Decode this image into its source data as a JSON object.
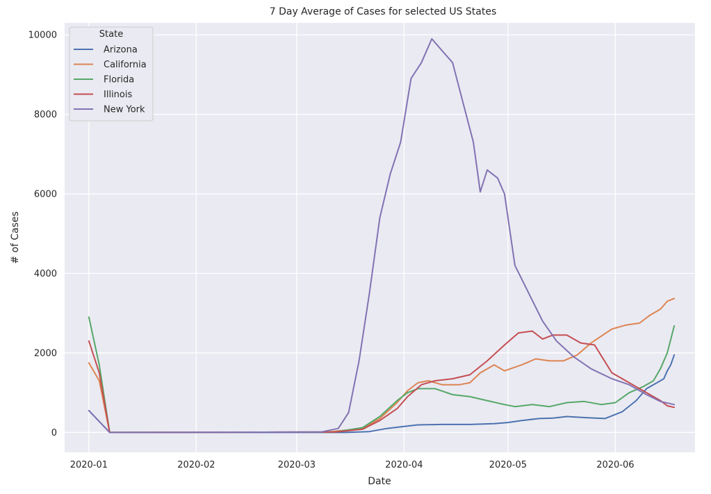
{
  "chart_data": {
    "type": "line",
    "title": "7 Day Average of Cases for selected US States",
    "xlabel": "Date",
    "ylabel": "# of Cases",
    "xlim": [
      "2019-12-25",
      "2020-06-24"
    ],
    "ylim": [
      -500,
      10300
    ],
    "yticks": [
      0,
      2000,
      4000,
      6000,
      8000,
      10000
    ],
    "xticks": [
      {
        "date": "2020-01-01",
        "label": "2020-01"
      },
      {
        "date": "2020-02-01",
        "label": "2020-02"
      },
      {
        "date": "2020-03-01",
        "label": "2020-03"
      },
      {
        "date": "2020-04-01",
        "label": "2020-04"
      },
      {
        "date": "2020-05-01",
        "label": "2020-05"
      },
      {
        "date": "2020-06-01",
        "label": "2020-06"
      }
    ],
    "grid": true,
    "background": "#eaeaf2",
    "legend": {
      "title": "State",
      "placement": "top-left"
    },
    "series": [
      {
        "name": "Arizona",
        "color": "#4c72b0",
        "points": [
          [
            "2020-01-01",
            550
          ],
          [
            "2020-01-07",
            0
          ],
          [
            "2020-03-15",
            0
          ],
          [
            "2020-03-22",
            20
          ],
          [
            "2020-03-27",
            100
          ],
          [
            "2020-04-01",
            150
          ],
          [
            "2020-04-05",
            190
          ],
          [
            "2020-04-12",
            200
          ],
          [
            "2020-04-20",
            200
          ],
          [
            "2020-04-27",
            220
          ],
          [
            "2020-05-01",
            250
          ],
          [
            "2020-05-05",
            300
          ],
          [
            "2020-05-10",
            350
          ],
          [
            "2020-05-14",
            360
          ],
          [
            "2020-05-18",
            400
          ],
          [
            "2020-05-24",
            370
          ],
          [
            "2020-05-29",
            350
          ],
          [
            "2020-06-03",
            520
          ],
          [
            "2020-06-07",
            800
          ],
          [
            "2020-06-10",
            1100
          ],
          [
            "2020-06-13",
            1250
          ],
          [
            "2020-06-15",
            1350
          ],
          [
            "2020-06-16",
            1550
          ],
          [
            "2020-06-17",
            1700
          ],
          [
            "2020-06-18",
            1950
          ]
        ]
      },
      {
        "name": "California",
        "color": "#dd8452",
        "points": [
          [
            "2020-01-01",
            1750
          ],
          [
            "2020-01-04",
            1300
          ],
          [
            "2020-01-07",
            0
          ],
          [
            "2020-03-10",
            10
          ],
          [
            "2020-03-20",
            100
          ],
          [
            "2020-03-25",
            350
          ],
          [
            "2020-03-30",
            750
          ],
          [
            "2020-04-02",
            1050
          ],
          [
            "2020-04-05",
            1250
          ],
          [
            "2020-04-08",
            1300
          ],
          [
            "2020-04-12",
            1200
          ],
          [
            "2020-04-17",
            1200
          ],
          [
            "2020-04-20",
            1250
          ],
          [
            "2020-04-23",
            1500
          ],
          [
            "2020-04-27",
            1700
          ],
          [
            "2020-04-30",
            1550
          ],
          [
            "2020-05-05",
            1700
          ],
          [
            "2020-05-09",
            1850
          ],
          [
            "2020-05-13",
            1800
          ],
          [
            "2020-05-17",
            1800
          ],
          [
            "2020-05-21",
            1950
          ],
          [
            "2020-05-25",
            2250
          ],
          [
            "2020-05-31",
            2600
          ],
          [
            "2020-06-04",
            2700
          ],
          [
            "2020-06-08",
            2750
          ],
          [
            "2020-06-11",
            2950
          ],
          [
            "2020-06-14",
            3100
          ],
          [
            "2020-06-16",
            3300
          ],
          [
            "2020-06-18",
            3370
          ]
        ]
      },
      {
        "name": "Florida",
        "color": "#55a868",
        "points": [
          [
            "2020-01-01",
            2900
          ],
          [
            "2020-01-04",
            1700
          ],
          [
            "2020-01-07",
            0
          ],
          [
            "2020-03-12",
            10
          ],
          [
            "2020-03-20",
            120
          ],
          [
            "2020-03-25",
            400
          ],
          [
            "2020-03-30",
            800
          ],
          [
            "2020-04-02",
            1000
          ],
          [
            "2020-04-05",
            1100
          ],
          [
            "2020-04-10",
            1100
          ],
          [
            "2020-04-15",
            950
          ],
          [
            "2020-04-20",
            900
          ],
          [
            "2020-04-25",
            800
          ],
          [
            "2020-04-30",
            700
          ],
          [
            "2020-05-03",
            650
          ],
          [
            "2020-05-08",
            700
          ],
          [
            "2020-05-13",
            650
          ],
          [
            "2020-05-18",
            750
          ],
          [
            "2020-05-23",
            780
          ],
          [
            "2020-05-28",
            700
          ],
          [
            "2020-06-01",
            750
          ],
          [
            "2020-06-05",
            1000
          ],
          [
            "2020-06-09",
            1150
          ],
          [
            "2020-06-12",
            1300
          ],
          [
            "2020-06-14",
            1600
          ],
          [
            "2020-06-16",
            2000
          ],
          [
            "2020-06-18",
            2680
          ]
        ]
      },
      {
        "name": "Illinois",
        "color": "#c44e52",
        "points": [
          [
            "2020-01-01",
            2300
          ],
          [
            "2020-01-04",
            1500
          ],
          [
            "2020-01-07",
            0
          ],
          [
            "2020-03-12",
            10
          ],
          [
            "2020-03-20",
            80
          ],
          [
            "2020-03-25",
            300
          ],
          [
            "2020-03-30",
            600
          ],
          [
            "2020-04-02",
            900
          ],
          [
            "2020-04-06",
            1200
          ],
          [
            "2020-04-10",
            1300
          ],
          [
            "2020-04-15",
            1350
          ],
          [
            "2020-04-20",
            1450
          ],
          [
            "2020-04-25",
            1800
          ],
          [
            "2020-04-30",
            2200
          ],
          [
            "2020-05-04",
            2500
          ],
          [
            "2020-05-08",
            2550
          ],
          [
            "2020-05-11",
            2350
          ],
          [
            "2020-05-14",
            2450
          ],
          [
            "2020-05-18",
            2450
          ],
          [
            "2020-05-22",
            2250
          ],
          [
            "2020-05-26",
            2200
          ],
          [
            "2020-05-31",
            1500
          ],
          [
            "2020-06-03",
            1350
          ],
          [
            "2020-06-07",
            1150
          ],
          [
            "2020-06-11",
            950
          ],
          [
            "2020-06-14",
            800
          ],
          [
            "2020-06-16",
            670
          ],
          [
            "2020-06-18",
            630
          ]
        ]
      },
      {
        "name": "New York",
        "color": "#8172b3",
        "points": [
          [
            "2020-01-01",
            550
          ],
          [
            "2020-01-07",
            0
          ],
          [
            "2020-03-08",
            10
          ],
          [
            "2020-03-13",
            100
          ],
          [
            "2020-03-16",
            500
          ],
          [
            "2020-03-19",
            1800
          ],
          [
            "2020-03-22",
            3500
          ],
          [
            "2020-03-25",
            5400
          ],
          [
            "2020-03-28",
            6500
          ],
          [
            "2020-03-31",
            7300
          ],
          [
            "2020-04-03",
            8900
          ],
          [
            "2020-04-06",
            9300
          ],
          [
            "2020-04-09",
            9900
          ],
          [
            "2020-04-12",
            9600
          ],
          [
            "2020-04-15",
            9300
          ],
          [
            "2020-04-18",
            8300
          ],
          [
            "2020-04-21",
            7300
          ],
          [
            "2020-04-23",
            6050
          ],
          [
            "2020-04-25",
            6600
          ],
          [
            "2020-04-28",
            6400
          ],
          [
            "2020-04-30",
            6000
          ],
          [
            "2020-05-03",
            4200
          ],
          [
            "2020-05-07",
            3500
          ],
          [
            "2020-05-11",
            2800
          ],
          [
            "2020-05-15",
            2300
          ],
          [
            "2020-05-20",
            1900
          ],
          [
            "2020-05-25",
            1600
          ],
          [
            "2020-05-31",
            1350
          ],
          [
            "2020-06-05",
            1200
          ],
          [
            "2020-06-10",
            950
          ],
          [
            "2020-06-14",
            780
          ],
          [
            "2020-06-18",
            700
          ]
        ]
      }
    ]
  }
}
